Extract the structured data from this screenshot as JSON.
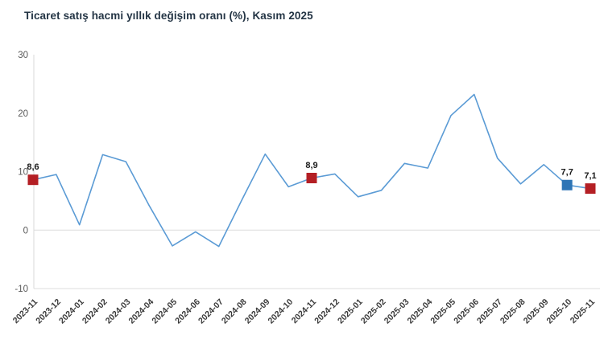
{
  "title": "Ticaret satış hacmi yıllık değişim oranı (%), Kasım 2025",
  "colors": {
    "line": "#5B9BD5",
    "marker_red": "#B41F24",
    "marker_blue": "#2E75B6",
    "grid": "#DCDCDC",
    "axis": "#D9D9D9",
    "y_tick_text": "#595959",
    "x_tick_text": "#3A3A3A",
    "data_label_text": "#1A1A1A",
    "title_text": "#243545"
  },
  "chart_data": {
    "type": "line",
    "title": "Ticaret satış hacmi yıllık değişim oranı (%), Kasım 2025",
    "xlabel": "",
    "ylabel": "",
    "ylim": [
      -10,
      30
    ],
    "yticks": [
      30,
      20,
      10,
      0,
      -10
    ],
    "gridline_values": [
      0,
      -10
    ],
    "legend": "none",
    "categories": [
      "2023-11",
      "2023-12",
      "2024-01",
      "2024-02",
      "2024-03",
      "2024-04",
      "2024-05",
      "2024-06",
      "2024-07",
      "2024-08",
      "2024-09",
      "2024-10",
      "2024-11",
      "2024-12",
      "2025-01",
      "2025-02",
      "2025-03",
      "2025-04",
      "2025-05",
      "2025-06",
      "2025-07",
      "2025-08",
      "2025-09",
      "2025-10",
      "2025-11"
    ],
    "values": [
      8.6,
      9.5,
      0.9,
      12.9,
      11.7,
      4.2,
      -2.7,
      -0.3,
      -2.8,
      5.2,
      13.0,
      7.4,
      8.9,
      9.6,
      5.7,
      6.8,
      11.4,
      10.6,
      19.6,
      23.2,
      12.3,
      7.9,
      11.2,
      7.7,
      7.1
    ],
    "markers": [
      {
        "category": "2023-11",
        "value": 8.6,
        "label": "8,6",
        "color": "#B41F24"
      },
      {
        "category": "2024-11",
        "value": 8.9,
        "label": "8,9",
        "color": "#B41F24"
      },
      {
        "category": "2025-10",
        "value": 7.7,
        "label": "7,7",
        "color": "#2E75B6"
      },
      {
        "category": "2025-11",
        "value": 7.1,
        "label": "7,1",
        "color": "#B41F24"
      }
    ]
  }
}
